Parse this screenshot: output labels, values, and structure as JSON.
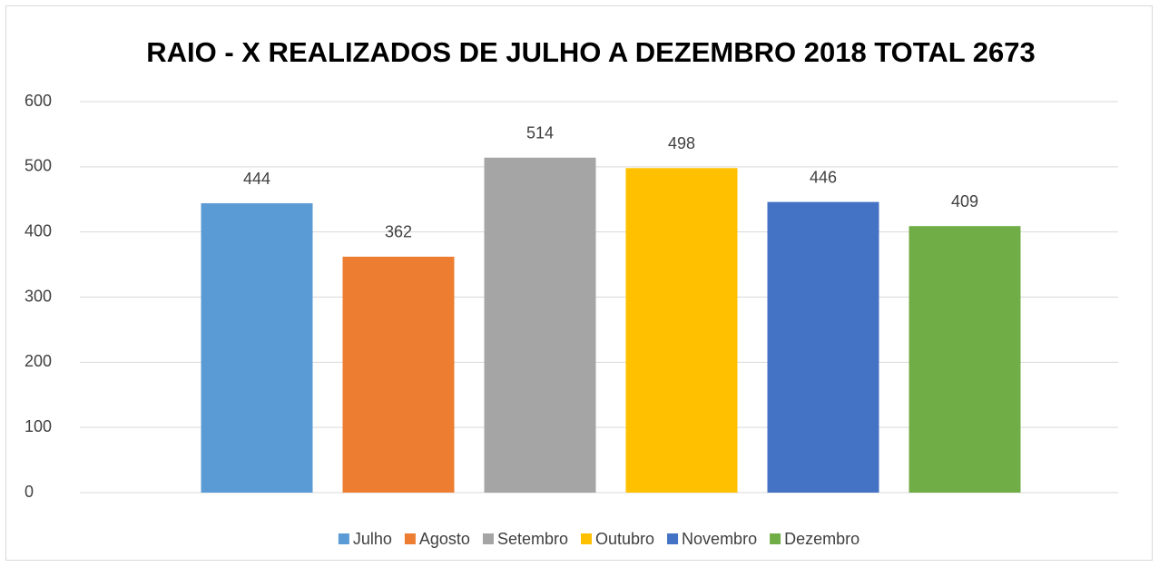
{
  "chart_data": {
    "type": "bar",
    "title": "RAIO - X REALIZADOS DE JULHO A DEZEMBRO 2018  TOTAL  2673",
    "categories": [
      null
    ],
    "series": [
      {
        "name": "Julho",
        "color": "#5b9bd5",
        "values": [
          444
        ]
      },
      {
        "name": "Agosto",
        "color": "#ed7d31",
        "values": [
          362
        ]
      },
      {
        "name": "Setembro",
        "color": "#a5a5a5",
        "values": [
          514
        ]
      },
      {
        "name": "Outubro",
        "color": "#ffc000",
        "values": [
          498
        ]
      },
      {
        "name": "Novembro",
        "color": "#4472c4",
        "values": [
          446
        ]
      },
      {
        "name": "Dezembro",
        "color": "#70ad47",
        "values": [
          409
        ]
      }
    ],
    "ylim": [
      0,
      600
    ],
    "yticks": [
      0,
      100,
      200,
      300,
      400,
      500,
      600
    ],
    "grid": true,
    "legend": "bottom"
  }
}
